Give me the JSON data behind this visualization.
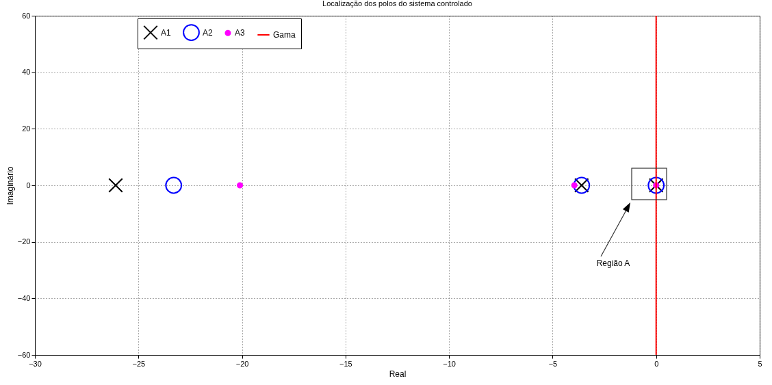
{
  "chart_data": {
    "type": "scatter",
    "title": "Localização dos polos do sistema controlado",
    "xlabel": "Real",
    "ylabel": "Imaginário",
    "xlim": [
      -30,
      5
    ],
    "xticks": [
      -30,
      -25,
      -20,
      -15,
      -10,
      -5,
      0,
      5
    ],
    "ylim": [
      -60,
      60
    ],
    "yticks": [
      -60,
      -40,
      -20,
      0,
      20,
      40,
      60
    ],
    "grid": true,
    "legend": "top left",
    "series": [
      {
        "name": "A1",
        "color": "#000000",
        "marker": "cross",
        "x": [
          -26.1,
          -3.6,
          0
        ],
        "values": [
          0,
          0,
          0
        ]
      },
      {
        "name": "A2",
        "color": "#0000ff",
        "marker": "circle",
        "x": [
          -23.3,
          -3.6,
          0
        ],
        "values": [
          0,
          0,
          0
        ]
      },
      {
        "name": "A3",
        "color": "#ff00ff",
        "marker": "dot",
        "x": [
          -20.1,
          -3.95,
          0
        ],
        "values": [
          0,
          0,
          0
        ]
      },
      {
        "name": "Gama",
        "type": "line",
        "color": "#ff0000",
        "x": [
          0,
          0
        ],
        "values": [
          -60,
          60
        ]
      }
    ],
    "annotations": [
      "Região A"
    ]
  }
}
